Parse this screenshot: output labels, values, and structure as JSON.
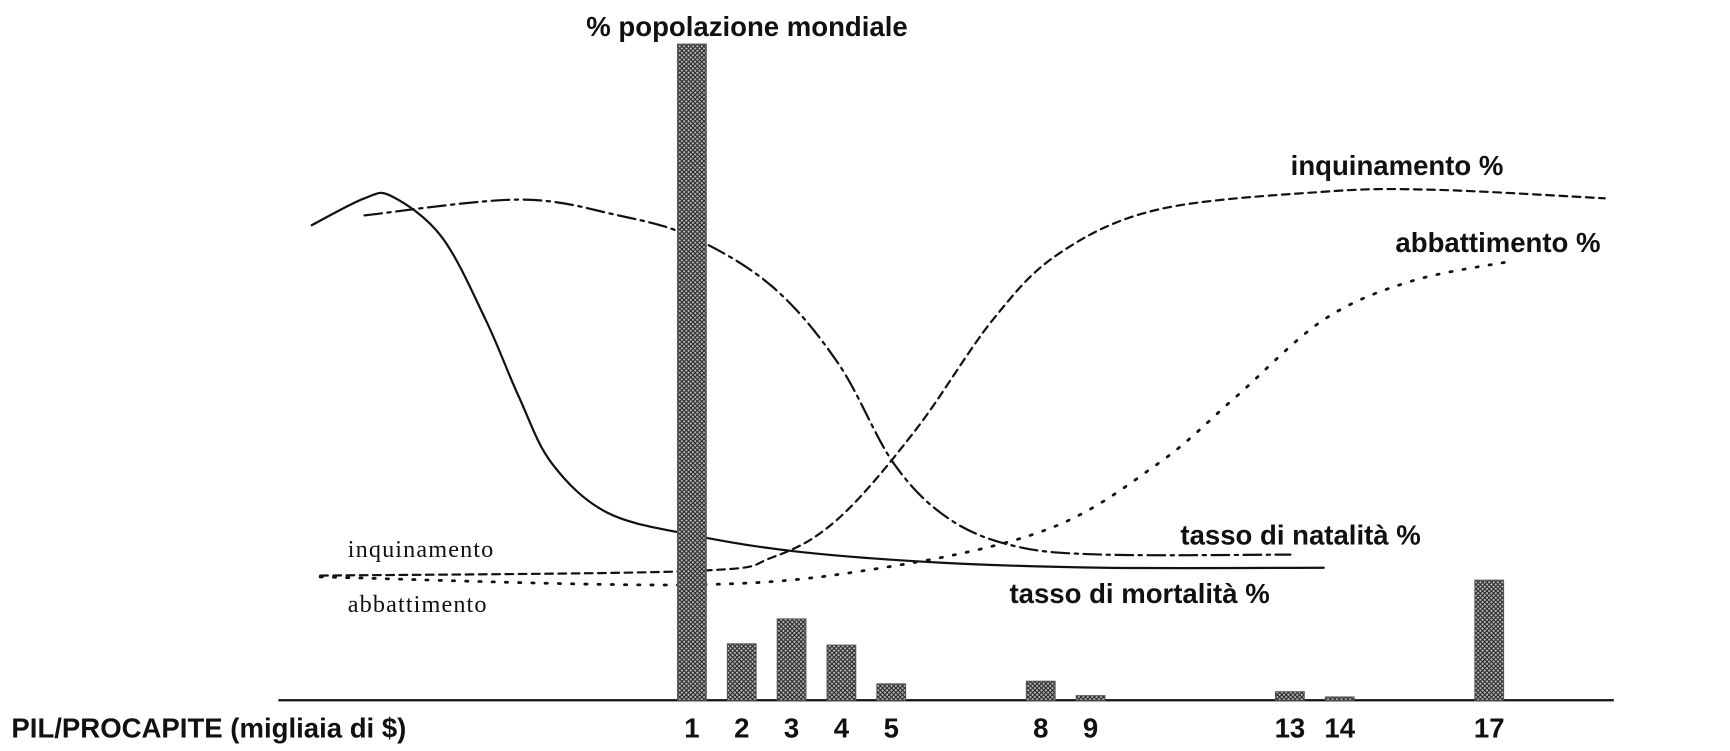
{
  "chart_data": {
    "type": "bar",
    "title": "% popolazione mondiale",
    "x_label": "PIL/PROCAPITE (migliaia di $)",
    "x": [
      1,
      2,
      3,
      4,
      5,
      8,
      9,
      13,
      14,
      17
    ],
    "values": [
      100,
      8.6,
      12.4,
      8.4,
      2.5,
      2.9,
      0.7,
      1.3,
      0.5,
      18.3
    ],
    "color": "#555555",
    "xlim": [
      -7.3,
      19.5
    ],
    "xticks": [
      1,
      2,
      3,
      4,
      5,
      8,
      9,
      13,
      14,
      17
    ],
    "ylim": [
      0,
      100
    ],
    "annotations": [
      "inquinamento",
      "abbattimento"
    ],
    "series": [
      {
        "name": "tasso di mortalità %",
        "color": "#111111",
        "x": [
          -6.63,
          -5.57,
          -5.02,
          -4.02,
          -3.14,
          -2.47,
          -1.81,
          -0.7,
          1,
          3.06,
          5.93,
          9.25,
          13.68
        ],
        "values": [
          72.4,
          76.5,
          76.8,
          70.6,
          58,
          46.2,
          36.1,
          28.6,
          25.2,
          22.7,
          21,
          20.2,
          20.2
        ]
      },
      {
        "name": "tasso di natalità %",
        "color": "#111111",
        "x": [
          -5.57,
          -2.47,
          -0.48,
          1,
          2.62,
          3.94,
          5.05,
          6.15,
          7.48,
          9.25,
          13.01
        ],
        "values": [
          73.9,
          76.3,
          73.9,
          70.6,
          63,
          51.3,
          36.1,
          27.7,
          23.5,
          22.2,
          22.2
        ]
      },
      {
        "name": "inquinamento %",
        "color": "#111111",
        "x": [
          -6.46,
          1,
          2.62,
          3.94,
          5.49,
          7.04,
          8.37,
          10.36,
          13.68,
          15.89,
          19.32
        ],
        "values": [
          19,
          19.7,
          21.8,
          27.7,
          41.2,
          58,
          68.1,
          74.8,
          77.5,
          77.8,
          76.5
        ]
      },
      {
        "name": "abbattimento %",
        "color": "#111111",
        "x": [
          -6.46,
          1,
          4.83,
          8.15,
          10.36,
          11.91,
          13.68,
          15.45,
          17.44
        ],
        "values": [
          18.8,
          17.6,
          20.2,
          26.1,
          36.1,
          46.2,
          58,
          63.9,
          66.9
        ]
      }
    ]
  }
}
